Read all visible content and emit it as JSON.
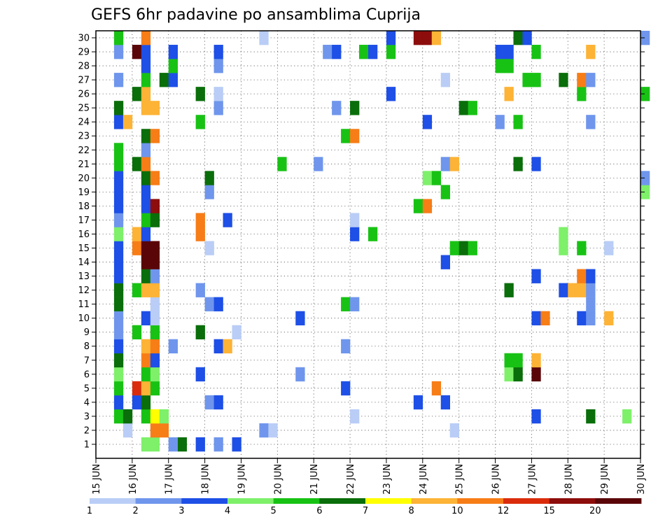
{
  "chart_data": {
    "type": "heatmap",
    "title": "GEFS 6hr padavine po ansamblima Cuprija",
    "xlabel": "",
    "ylabel": "",
    "x_ticks": [
      "15 JUN",
      "16 JUN",
      "17 JUN",
      "18 JUN",
      "19 JUN",
      "20 JUN",
      "21 JUN",
      "22 JUN",
      "23 JUN",
      "24 JUN",
      "25 JUN",
      "26 JUN",
      "27 JUN",
      "28 JUN",
      "29 JUN",
      "30 JUN"
    ],
    "y_ticks": [
      1,
      2,
      3,
      4,
      5,
      6,
      7,
      8,
      9,
      10,
      11,
      12,
      13,
      14,
      15,
      16,
      17,
      18,
      19,
      20,
      21,
      22,
      23,
      24,
      25,
      26,
      27,
      28,
      29,
      30
    ],
    "x_range_days": [
      0,
      15
    ],
    "y_range": [
      0,
      30
    ],
    "step_days": 0.25,
    "grid": "dotted",
    "colorbar": {
      "labels": [
        "1",
        "2",
        "3",
        "4",
        "5",
        "6",
        "7",
        "8",
        "10",
        "12",
        "15",
        "20"
      ],
      "colors": [
        "#b9cdf6",
        "#6f96ec",
        "#1e4fe6",
        "#7ef06a",
        "#18c214",
        "#0a6e0a",
        "#ffff00",
        "#fdb336",
        "#f77d17",
        "#da2c0c",
        "#8c0d0c",
        "#5a0608"
      ]
    },
    "cells": [
      [
        0,
        "16 JUN 06",
        1,
        4
      ],
      [
        0,
        "16 JUN 12",
        1,
        4
      ],
      [
        0,
        "17 JUN 06",
        1,
        6
      ],
      [
        0,
        "17 JUN 00",
        1,
        2
      ],
      [
        0,
        "17 JUN 18",
        1,
        3
      ],
      [
        0,
        "18 JUN 06",
        1,
        2
      ],
      [
        0,
        "18 JUN 18",
        1,
        3
      ],
      [
        1,
        "15 JUN 18",
        2,
        1
      ],
      [
        1,
        "16 JUN 12",
        2,
        10
      ],
      [
        1,
        "16 JUN 18",
        2,
        10
      ],
      [
        1,
        "19 JUN 12",
        2,
        2
      ],
      [
        1,
        "19 JUN 18",
        2,
        1
      ],
      [
        1,
        "24 JUN 18",
        2,
        1
      ],
      [
        2,
        "15 JUN 12",
        3,
        5
      ],
      [
        2,
        "15 JUN 18",
        3,
        6
      ],
      [
        2,
        "16 JUN 06",
        3,
        5
      ],
      [
        2,
        "16 JUN 12",
        3,
        7
      ],
      [
        2,
        "16 JUN 18",
        3,
        4
      ],
      [
        2,
        "22 JUN 00",
        3,
        1
      ],
      [
        2,
        "27 JUN 00",
        3,
        3
      ],
      [
        2,
        "28 JUN 12",
        3,
        6
      ],
      [
        2,
        "29 JUN 12",
        3,
        4
      ],
      [
        3,
        "15 JUN 12",
        4,
        3
      ],
      [
        3,
        "16 JUN 00",
        4,
        3
      ],
      [
        3,
        "16 JUN 06",
        4,
        6
      ],
      [
        3,
        "18 JUN 00",
        4,
        2
      ],
      [
        3,
        "18 JUN 06",
        4,
        3
      ],
      [
        3,
        "23 JUN 18",
        4,
        3
      ],
      [
        3,
        "24 JUN 12",
        4,
        3
      ],
      [
        4,
        "15 JUN 12",
        5,
        5
      ],
      [
        4,
        "16 JUN 00",
        5,
        12
      ],
      [
        4,
        "16 JUN 06",
        5,
        8
      ],
      [
        4,
        "16 JUN 12",
        5,
        5
      ],
      [
        4,
        "21 JUN 18",
        5,
        3
      ],
      [
        4,
        "24 JUN 06",
        5,
        10
      ],
      [
        5,
        "15 JUN 12",
        6,
        4
      ],
      [
        5,
        "16 JUN 06",
        6,
        5
      ],
      [
        5,
        "16 JUN 12",
        6,
        4
      ],
      [
        5,
        "17 JUN 18",
        6,
        3
      ],
      [
        5,
        "20 JUN 12",
        6,
        2
      ],
      [
        5,
        "26 JUN 06",
        6,
        4
      ],
      [
        5,
        "26 JUN 12",
        6,
        6
      ],
      [
        5,
        "27 JUN 00",
        6,
        20
      ],
      [
        6,
        "15 JUN 12",
        7,
        6
      ],
      [
        6,
        "16 JUN 06",
        7,
        10
      ],
      [
        6,
        "16 JUN 12",
        7,
        3
      ],
      [
        6,
        "26 JUN 06",
        7,
        5
      ],
      [
        6,
        "26 JUN 12",
        7,
        5
      ],
      [
        6,
        "27 JUN 00",
        7,
        8
      ],
      [
        7,
        "15 JUN 12",
        8,
        3
      ],
      [
        7,
        "16 JUN 06",
        8,
        8
      ],
      [
        7,
        "16 JUN 12",
        8,
        10
      ],
      [
        7,
        "17 JUN 00",
        8,
        2
      ],
      [
        7,
        "18 JUN 06",
        8,
        3
      ],
      [
        7,
        "18 JUN 12",
        8,
        8
      ],
      [
        7,
        "21 JUN 18",
        8,
        2
      ],
      [
        8,
        "15 JUN 12",
        9,
        2
      ],
      [
        8,
        "16 JUN 00",
        9,
        5
      ],
      [
        8,
        "16 JUN 12",
        9,
        5
      ],
      [
        8,
        "17 JUN 18",
        9,
        6
      ],
      [
        8,
        "18 JUN 18",
        9,
        1
      ],
      [
        9,
        "15 JUN 12",
        10,
        2
      ],
      [
        9,
        "16 JUN 06",
        10,
        3
      ],
      [
        9,
        "16 JUN 12",
        10,
        1
      ],
      [
        9,
        "20 JUN 12",
        10,
        3
      ],
      [
        9,
        "27 JUN 00",
        10,
        3
      ],
      [
        9,
        "27 JUN 06",
        10,
        10
      ],
      [
        9,
        "28 JUN 06",
        10,
        3
      ],
      [
        9,
        "28 JUN 12",
        10,
        2
      ],
      [
        9,
        "29 JUN 00",
        10,
        8
      ],
      [
        10,
        "15 JUN 12",
        11,
        6
      ],
      [
        10,
        "16 JUN 12",
        11,
        1
      ],
      [
        10,
        "18 JUN 00",
        11,
        2
      ],
      [
        10,
        "18 JUN 06",
        11,
        3
      ],
      [
        10,
        "21 JUN 18",
        11,
        5
      ],
      [
        10,
        "22 JUN 00",
        11,
        2
      ],
      [
        10,
        "28 JUN 12",
        11,
        2
      ],
      [
        11,
        "15 JUN 12",
        12,
        6
      ],
      [
        11,
        "16 JUN 00",
        12,
        5
      ],
      [
        11,
        "16 JUN 06",
        12,
        8
      ],
      [
        11,
        "16 JUN 12",
        12,
        8
      ],
      [
        11,
        "17 JUN 18",
        12,
        2
      ],
      [
        11,
        "26 JUN 06",
        12,
        6
      ],
      [
        11,
        "27 JUN 18",
        12,
        3
      ],
      [
        11,
        "28 JUN 00",
        12,
        8
      ],
      [
        11,
        "28 JUN 06",
        12,
        8
      ],
      [
        11,
        "28 JUN 12",
        12,
        2
      ],
      [
        12,
        "15 JUN 12",
        13,
        3
      ],
      [
        12,
        "16 JUN 06",
        13,
        6
      ],
      [
        12,
        "16 JUN 12",
        13,
        2
      ],
      [
        12,
        "27 JUN 00",
        13,
        3
      ],
      [
        12,
        "28 JUN 06",
        13,
        10
      ],
      [
        12,
        "28 JUN 12",
        13,
        3
      ],
      [
        13,
        "15 JUN 12",
        14,
        3
      ],
      [
        13,
        "16 JUN 06",
        14,
        20
      ],
      [
        13,
        "16 JUN 12",
        14,
        20
      ],
      [
        13,
        "24 JUN 12",
        14,
        3
      ],
      [
        14,
        "15 JUN 12",
        15,
        3
      ],
      [
        14,
        "16 JUN 00",
        15,
        10
      ],
      [
        14,
        "16 JUN 06",
        15,
        20
      ],
      [
        14,
        "16 JUN 12",
        15,
        20
      ],
      [
        14,
        "18 JUN 00",
        15,
        1
      ],
      [
        14,
        "24 JUN 18",
        15,
        5
      ],
      [
        14,
        "25 JUN 00",
        15,
        6
      ],
      [
        14,
        "25 JUN 06",
        15,
        5
      ],
      [
        14,
        "27 JUN 18",
        15,
        4
      ],
      [
        14,
        "28 JUN 06",
        15,
        5
      ],
      [
        14,
        "29 JUN 00",
        15,
        1
      ],
      [
        15,
        "15 JUN 12",
        16,
        4
      ],
      [
        15,
        "16 JUN 00",
        16,
        8
      ],
      [
        15,
        "16 JUN 06",
        16,
        3
      ],
      [
        15,
        "17 JUN 18",
        16,
        10
      ],
      [
        15,
        "22 JUN 00",
        16,
        3
      ],
      [
        15,
        "22 JUN 12",
        16,
        5
      ],
      [
        15,
        "27 JUN 18",
        16,
        4
      ],
      [
        16,
        "15 JUN 12",
        17,
        2
      ],
      [
        16,
        "16 JUN 06",
        17,
        5
      ],
      [
        16,
        "16 JUN 12",
        17,
        6
      ],
      [
        16,
        "17 JUN 18",
        17,
        10
      ],
      [
        16,
        "18 JUN 12",
        17,
        3
      ],
      [
        16,
        "22 JUN 00",
        17,
        1
      ],
      [
        17,
        "15 JUN 12",
        18,
        3
      ],
      [
        17,
        "16 JUN 06",
        18,
        3
      ],
      [
        17,
        "16 JUN 12",
        18,
        15
      ],
      [
        17,
        "23 JUN 18",
        18,
        5
      ],
      [
        17,
        "24 JUN 00",
        18,
        10
      ],
      [
        18,
        "15 JUN 12",
        19,
        3
      ],
      [
        18,
        "16 JUN 06",
        19,
        3
      ],
      [
        18,
        "18 JUN 00",
        19,
        2
      ],
      [
        18,
        "24 JUN 12",
        19,
        5
      ],
      [
        18,
        "30 JUN 00",
        19,
        4
      ],
      [
        19,
        "15 JUN 12",
        20,
        3
      ],
      [
        19,
        "16 JUN 06",
        20,
        6
      ],
      [
        19,
        "16 JUN 12",
        20,
        10
      ],
      [
        19,
        "18 JUN 00",
        20,
        6
      ],
      [
        19,
        "24 JUN 00",
        20,
        4
      ],
      [
        19,
        "24 JUN 06",
        20,
        5
      ],
      [
        19,
        "30 JUN 00",
        20,
        2
      ],
      [
        20,
        "15 JUN 12",
        21,
        5
      ],
      [
        20,
        "16 JUN 00",
        21,
        6
      ],
      [
        20,
        "16 JUN 06",
        21,
        10
      ],
      [
        20,
        "20 JUN 00",
        21,
        5
      ],
      [
        20,
        "21 JUN 00",
        21,
        2
      ],
      [
        20,
        "24 JUN 12",
        21,
        2
      ],
      [
        20,
        "24 JUN 18",
        21,
        8
      ],
      [
        20,
        "26 JUN 12",
        21,
        6
      ],
      [
        20,
        "27 JUN 00",
        21,
        3
      ],
      [
        21,
        "15 JUN 12",
        22,
        5
      ],
      [
        21,
        "16 JUN 06",
        22,
        2
      ],
      [
        22,
        "16 JUN 06",
        23,
        6
      ],
      [
        22,
        "16 JUN 12",
        23,
        10
      ],
      [
        22,
        "21 JUN 18",
        23,
        5
      ],
      [
        22,
        "22 JUN 00",
        23,
        10
      ],
      [
        23,
        "15 JUN 12",
        24,
        3
      ],
      [
        23,
        "15 JUN 18",
        24,
        8
      ],
      [
        23,
        "17 JUN 18",
        24,
        5
      ],
      [
        23,
        "24 JUN 00",
        24,
        3
      ],
      [
        23,
        "26 JUN 00",
        24,
        2
      ],
      [
        23,
        "26 JUN 12",
        24,
        5
      ],
      [
        23,
        "28 JUN 12",
        24,
        2
      ],
      [
        24,
        "15 JUN 12",
        25,
        6
      ],
      [
        24,
        "16 JUN 06",
        25,
        8
      ],
      [
        24,
        "16 JUN 12",
        25,
        8
      ],
      [
        24,
        "18 JUN 06",
        25,
        2
      ],
      [
        24,
        "21 JUN 12",
        25,
        2
      ],
      [
        24,
        "22 JUN 00",
        25,
        6
      ],
      [
        24,
        "25 JUN 00",
        25,
        6
      ],
      [
        24,
        "25 JUN 06",
        25,
        5
      ],
      [
        25,
        "16 JUN 00",
        26,
        6
      ],
      [
        25,
        "16 JUN 06",
        26,
        8
      ],
      [
        25,
        "17 JUN 18",
        26,
        6
      ],
      [
        25,
        "18 JUN 06",
        26,
        1
      ],
      [
        25,
        "23 JUN 00",
        26,
        3
      ],
      [
        25,
        "26 JUN 06",
        26,
        8
      ],
      [
        25,
        "28 JUN 06",
        26,
        5
      ],
      [
        25,
        "30 JUN 00",
        26,
        5
      ],
      [
        26,
        "15 JUN 12",
        27,
        2
      ],
      [
        26,
        "16 JUN 06",
        27,
        5
      ],
      [
        26,
        "16 JUN 18",
        27,
        6
      ],
      [
        26,
        "17 JUN 00",
        27,
        3
      ],
      [
        26,
        "24 JUN 12",
        27,
        1
      ],
      [
        26,
        "26 JUN 18",
        27,
        5
      ],
      [
        26,
        "27 JUN 00",
        27,
        5
      ],
      [
        26,
        "27 JUN 18",
        27,
        6
      ],
      [
        26,
        "28 JUN 06",
        27,
        10
      ],
      [
        26,
        "28 JUN 12",
        27,
        2
      ],
      [
        27,
        "16 JUN 06",
        28,
        3
      ],
      [
        27,
        "17 JUN 00",
        28,
        5
      ],
      [
        27,
        "18 JUN 06",
        28,
        2
      ],
      [
        27,
        "26 JUN 00",
        28,
        5
      ],
      [
        27,
        "26 JUN 06",
        28,
        5
      ],
      [
        28,
        "15 JUN 12",
        29,
        2
      ],
      [
        28,
        "16 JUN 00",
        29,
        20
      ],
      [
        28,
        "16 JUN 06",
        29,
        3
      ],
      [
        28,
        "17 JUN 00",
        29,
        3
      ],
      [
        28,
        "18 JUN 06",
        29,
        3
      ],
      [
        28,
        "21 JUN 06",
        29,
        2
      ],
      [
        28,
        "21 JUN 12",
        29,
        3
      ],
      [
        28,
        "22 JUN 06",
        29,
        5
      ],
      [
        28,
        "22 JUN 12",
        29,
        3
      ],
      [
        28,
        "23 JUN 00",
        29,
        5
      ],
      [
        28,
        "26 JUN 00",
        29,
        3
      ],
      [
        28,
        "26 JUN 06",
        29,
        3
      ],
      [
        28,
        "27 JUN 00",
        29,
        5
      ],
      [
        28,
        "28 JUN 12",
        29,
        8
      ],
      [
        29,
        "15 JUN 12",
        30,
        5
      ],
      [
        29,
        "16 JUN 06",
        30,
        10
      ],
      [
        29,
        "19 JUN 12",
        30,
        1
      ],
      [
        29,
        "23 JUN 00",
        30,
        3
      ],
      [
        29,
        "23 JUN 18",
        30,
        15
      ],
      [
        29,
        "24 JUN 00",
        30,
        15
      ],
      [
        29,
        "24 JUN 06",
        30,
        8
      ],
      [
        29,
        "26 JUN 12",
        30,
        6
      ],
      [
        29,
        "26 JUN 18",
        30,
        3
      ],
      [
        29,
        "30 JUN 00",
        30,
        2
      ]
    ],
    "cells_format": [
      "member_index",
      "valid_time",
      "member_number",
      "precip_mm"
    ]
  }
}
